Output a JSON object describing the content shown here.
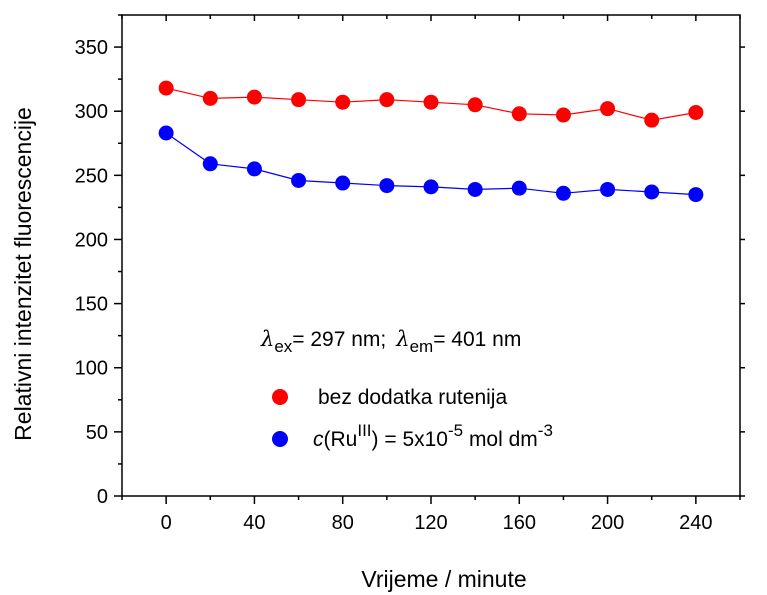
{
  "chart_data": {
    "type": "line",
    "xlabel": "Vrijeme / minute",
    "ylabel": "Relativni intenzitet fluorescencije",
    "xlim": [
      -20,
      260
    ],
    "ylim": [
      0,
      375
    ],
    "xticks": [
      0,
      40,
      80,
      120,
      160,
      200,
      240
    ],
    "yticks": [
      0,
      50,
      100,
      150,
      200,
      250,
      300,
      350
    ],
    "grid": false,
    "legend_position": "center-left, lower half",
    "x": [
      0,
      20,
      40,
      60,
      80,
      100,
      120,
      140,
      160,
      180,
      200,
      220,
      240
    ],
    "series": [
      {
        "name": "bez dodatka rutenija",
        "color": "#ff0000",
        "values": [
          318,
          310,
          311,
          309,
          307,
          309,
          307,
          305,
          298,
          297,
          302,
          293,
          299
        ]
      },
      {
        "name": "c(Ru^III) = 5x10^-5 mol dm^-3",
        "color": "#0000ff",
        "values": [
          283,
          259,
          255,
          246,
          244,
          242,
          241,
          239,
          240,
          236,
          239,
          237,
          235
        ]
      }
    ],
    "annotation": {
      "lambda": "λ",
      "ex_sub": "ex",
      "ex_text": "= 297 nm;",
      "em_sub": "em",
      "em_text": "= 401 nm"
    },
    "legend": {
      "red_label": "bez dodatka rutenija",
      "blue_c": "c",
      "blue_paren_open": "(Ru",
      "blue_sup1": "III",
      "blue_mid": ") = 5x10",
      "blue_sup2": "-5",
      "blue_unit": " mol dm",
      "blue_sup3": "-3"
    }
  }
}
